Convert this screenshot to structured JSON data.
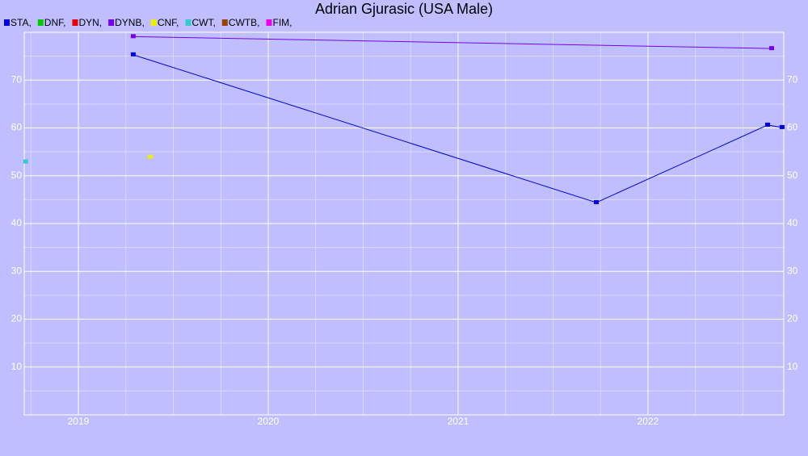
{
  "chart_data": {
    "type": "line",
    "title": "Adrian Gjurasic (USA Male)",
    "xlim": [
      2018.715,
      2022.715
    ],
    "xticks": [
      2019,
      2020,
      2021,
      2022
    ],
    "ylim": [
      0,
      80
    ],
    "yticks": [
      10,
      20,
      30,
      40,
      50,
      60,
      70
    ],
    "grid": true,
    "legend": "top-left",
    "series": [
      {
        "name": "STA,",
        "color": "#0000dd",
        "x": [
          2019.289,
          2021.728,
          2022.63,
          2022.706
        ],
        "values": [
          75.3,
          44.4,
          60.6,
          60.1
        ]
      },
      {
        "name": "DNF,",
        "color": "#00cc00",
        "x": [],
        "values": []
      },
      {
        "name": "DYN,",
        "color": "#ee0000",
        "x": [],
        "values": []
      },
      {
        "name": "DYNB,",
        "color": "#7700ee",
        "x": [
          2019.289,
          2022.651
        ],
        "values": [
          79.1,
          76.6
        ]
      },
      {
        "name": "CNF,",
        "color": "#eeee00",
        "x": [
          2019.379
        ],
        "values": [
          53.9
        ]
      },
      {
        "name": "CWT,",
        "color": "#33cccc",
        "x": [
          2018.723
        ],
        "values": [
          52.9
        ]
      },
      {
        "name": "CWTB,",
        "color": "#994400",
        "x": [],
        "values": []
      },
      {
        "name": "FIM,",
        "color": "#ee00ee",
        "x": [],
        "values": []
      }
    ]
  }
}
